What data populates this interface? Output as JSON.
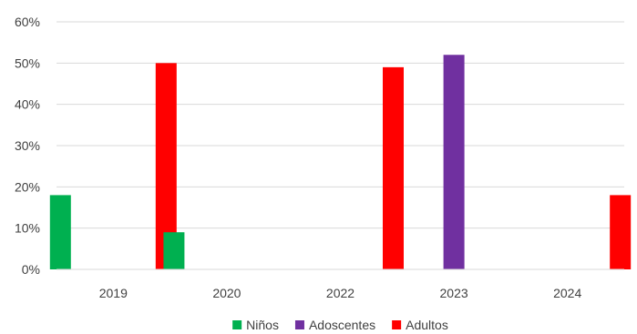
{
  "chart_data": {
    "type": "bar",
    "categories": [
      "2019",
      "2020",
      "2022",
      "2023",
      "2024"
    ],
    "series": [
      {
        "name": "Niños",
        "values": [
          18,
          9,
          0,
          0,
          0
        ],
        "color": "#00B050"
      },
      {
        "name": "Adoscentes",
        "values": [
          0,
          0,
          0,
          52,
          0
        ],
        "color": "#7030A0"
      },
      {
        "name": "Adultos",
        "values": [
          50,
          0,
          49,
          0,
          18
        ],
        "color": "#FF0000"
      }
    ],
    "ylim": [
      0,
      60
    ],
    "yticks": [
      "0%",
      "10%",
      "20%",
      "30%",
      "40%",
      "50%",
      "60%"
    ],
    "grid": true,
    "legend_position": "bottom"
  }
}
